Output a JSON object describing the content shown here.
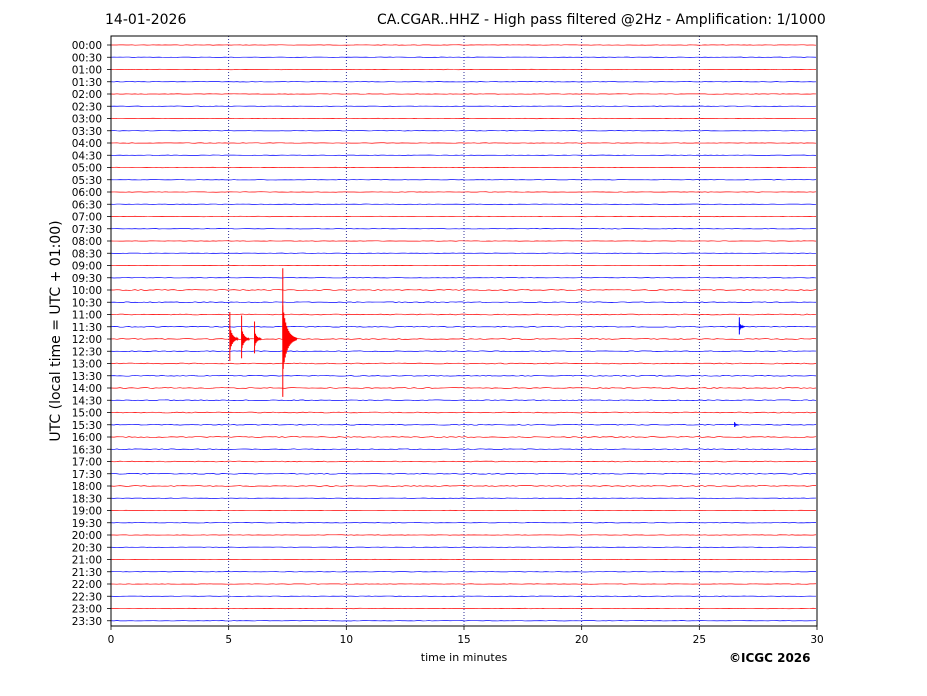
{
  "header": {
    "date": "14-01-2026",
    "title": "CA.CGAR..HHZ - High pass filtered @2Hz - Amplification: 1/1000"
  },
  "footer": {
    "copyright": "©ICGC 2026"
  },
  "chart_data": {
    "type": "line",
    "title": "CA.CGAR..HHZ - High pass filtered @2Hz - Amplification: 1/1000",
    "xlabel": "time in minutes",
    "ylabel": "UTC (local time = UTC + 01:00)",
    "xlim": [
      0,
      30
    ],
    "xticks": [
      0,
      5,
      10,
      15,
      20,
      25,
      30
    ],
    "vertical_gridlines": [
      5,
      10,
      15,
      20,
      25
    ],
    "grid": "dotted vertical",
    "trace_colors": [
      "#ff0000",
      "#0000ff"
    ],
    "traces": [
      "00:00",
      "00:30",
      "01:00",
      "01:30",
      "02:00",
      "02:30",
      "03:00",
      "03:30",
      "04:00",
      "04:30",
      "05:00",
      "05:30",
      "06:00",
      "06:30",
      "07:00",
      "07:30",
      "08:00",
      "08:30",
      "09:00",
      "09:30",
      "10:00",
      "10:30",
      "11:00",
      "11:30",
      "12:00",
      "12:30",
      "13:00",
      "13:30",
      "14:00",
      "14:30",
      "15:00",
      "15:30",
      "16:00",
      "16:30",
      "17:00",
      "17:30",
      "18:00",
      "18:30",
      "19:00",
      "19:30",
      "20:00",
      "20:30",
      "21:00",
      "21:30",
      "22:00",
      "22:30",
      "23:00",
      "23:30"
    ],
    "events": [
      {
        "trace": "12:00",
        "minute": 5.05,
        "amplitude": 4.0,
        "color": "#ff0000"
      },
      {
        "trace": "12:00",
        "minute": 5.55,
        "amplitude": 3.5,
        "color": "#ff0000"
      },
      {
        "trace": "12:00",
        "minute": 6.1,
        "amplitude": 2.6,
        "color": "#ff0000"
      },
      {
        "trace": "12:00",
        "minute": 7.3,
        "amplitude": 10.5,
        "color": "#ff0000"
      },
      {
        "trace": "11:30",
        "minute": 26.7,
        "amplitude": 1.4,
        "color": "#0000ff"
      },
      {
        "trace": "15:30",
        "minute": 26.5,
        "amplitude": 0.4,
        "color": "#0000ff"
      }
    ]
  }
}
